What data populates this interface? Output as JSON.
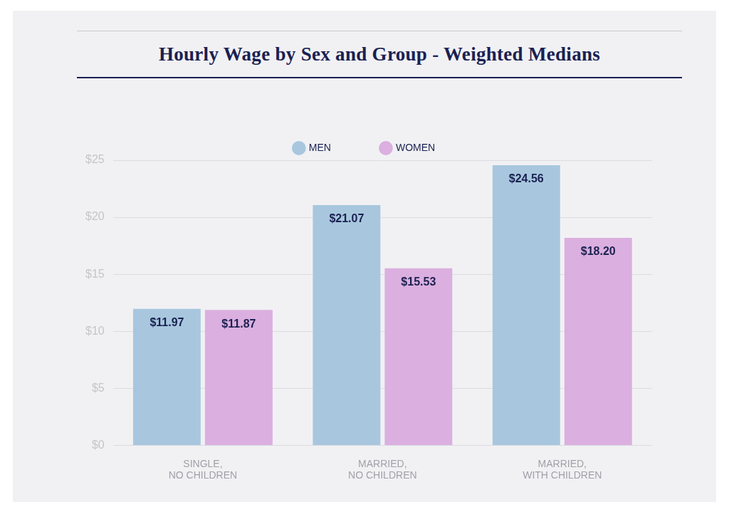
{
  "chart_data": {
    "type": "bar",
    "title": "Hourly Wage by Sex and Group - Weighted Medians",
    "categories": [
      "SINGLE, NO CHILDREN",
      "MARRIED, NO CHILDREN",
      "MARRIED, WITH CHILDREN"
    ],
    "series": [
      {
        "name": "MEN",
        "color": "#a8c7de",
        "values": [
          11.97,
          21.07,
          24.56
        ],
        "value_labels": [
          "$11.97",
          "$21.07",
          "$24.56"
        ]
      },
      {
        "name": "WOMEN",
        "color": "#dbafdf",
        "values": [
          11.87,
          15.53,
          18.2
        ],
        "value_labels": [
          "$11.87",
          "$15.53",
          "$18.20"
        ]
      }
    ],
    "ylim": [
      0,
      25
    ],
    "yticks": [
      {
        "value": 0,
        "label": "$0"
      },
      {
        "value": 5,
        "label": "$5"
      },
      {
        "value": 10,
        "label": "$10"
      },
      {
        "value": 15,
        "label": "$15"
      },
      {
        "value": 20,
        "label": "$20"
      },
      {
        "value": 25,
        "label": "$25"
      }
    ],
    "grid": true,
    "legend": "top",
    "data_labels": true
  }
}
